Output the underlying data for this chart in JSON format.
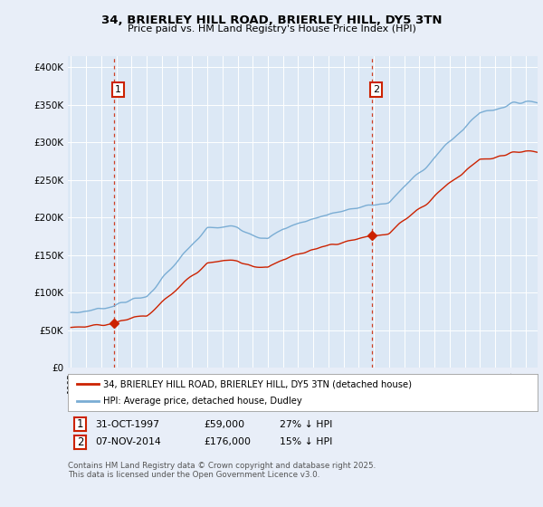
{
  "title": "34, BRIERLEY HILL ROAD, BRIERLEY HILL, DY5 3TN",
  "subtitle": "Price paid vs. HM Land Registry's House Price Index (HPI)",
  "ylabel_ticks": [
    "£0",
    "£50K",
    "£100K",
    "£150K",
    "£200K",
    "£250K",
    "£300K",
    "£350K",
    "£400K"
  ],
  "ytick_values": [
    0,
    50000,
    100000,
    150000,
    200000,
    250000,
    300000,
    350000,
    400000
  ],
  "ylim": [
    0,
    415000
  ],
  "xlim_start": 1994.8,
  "xlim_end": 2025.8,
  "hpi_color": "#7aadd4",
  "price_color": "#cc2200",
  "sale1_date": 1997.83,
  "sale1_price": 59000,
  "sale2_date": 2014.85,
  "sale2_price": 176000,
  "legend_label1": "34, BRIERLEY HILL ROAD, BRIERLEY HILL, DY5 3TN (detached house)",
  "legend_label2": "HPI: Average price, detached house, Dudley",
  "annotation1_label": "1",
  "annotation1_date": "31-OCT-1997",
  "annotation1_price": "£59,000",
  "annotation1_hpi": "27% ↓ HPI",
  "annotation2_label": "2",
  "annotation2_date": "07-NOV-2014",
  "annotation2_price": "£176,000",
  "annotation2_hpi": "15% ↓ HPI",
  "footer": "Contains HM Land Registry data © Crown copyright and database right 2025.\nThis data is licensed under the Open Government Licence v3.0.",
  "bg_color": "#e8eef8",
  "plot_bg_color": "#dce8f5"
}
